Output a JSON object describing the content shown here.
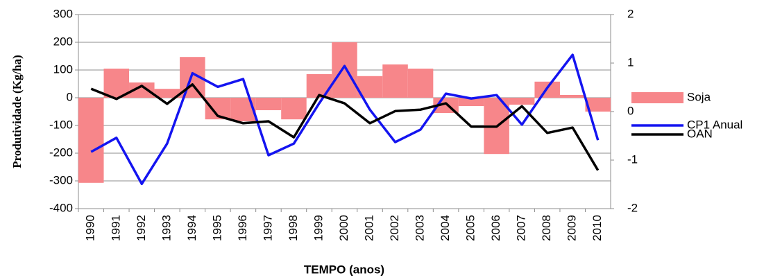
{
  "chart_data": {
    "type": "bar",
    "xlabel": "TEMPO (anos)",
    "ylabel": "Produtividade (Kg/ha)",
    "categories": [
      "1990",
      "1991",
      "1992",
      "1993",
      "1994",
      "1995",
      "1996",
      "1997",
      "1998",
      "1999",
      "2000",
      "2001",
      "2002",
      "2003",
      "2004",
      "2005",
      "2006",
      "2007",
      "2008",
      "2009",
      "2010"
    ],
    "series": [
      {
        "name": "Soja",
        "type": "bar",
        "color": "#f7868a",
        "values": [
          -307,
          105,
          55,
          32,
          147,
          -78,
          -85,
          -45,
          -78,
          85,
          200,
          78,
          120,
          105,
          -55,
          -30,
          -203,
          -25,
          58,
          10,
          -50
        ]
      },
      {
        "name": "CP1 Anual",
        "type": "line",
        "axis": "y2",
        "color": "#1414f0",
        "values": [
          -0.83,
          -0.54,
          -1.49,
          -0.66,
          0.79,
          0.51,
          0.67,
          -0.9,
          -0.66,
          0.17,
          0.94,
          0.04,
          -0.63,
          -0.37,
          0.37,
          0.27,
          0.34,
          -0.27,
          0.49,
          1.17,
          -0.59
        ]
      },
      {
        "name": "OAN",
        "type": "line",
        "axis": "y2",
        "color": "#000000",
        "values": [
          0.47,
          0.26,
          0.53,
          0.16,
          0.56,
          -0.09,
          -0.24,
          -0.2,
          -0.53,
          0.34,
          0.17,
          -0.24,
          0.01,
          0.04,
          0.17,
          -0.31,
          -0.31,
          0.11,
          -0.44,
          -0.33,
          -1.21
        ]
      }
    ],
    "ylim": [
      -400,
      300
    ],
    "yticks": [
      -400,
      -300,
      -200,
      -100,
      0,
      100,
      200,
      300
    ],
    "y2lim": [
      -2,
      2
    ],
    "y2ticks": [
      -2,
      -1,
      0,
      1,
      2
    ],
    "grid": true,
    "legend": "right"
  }
}
